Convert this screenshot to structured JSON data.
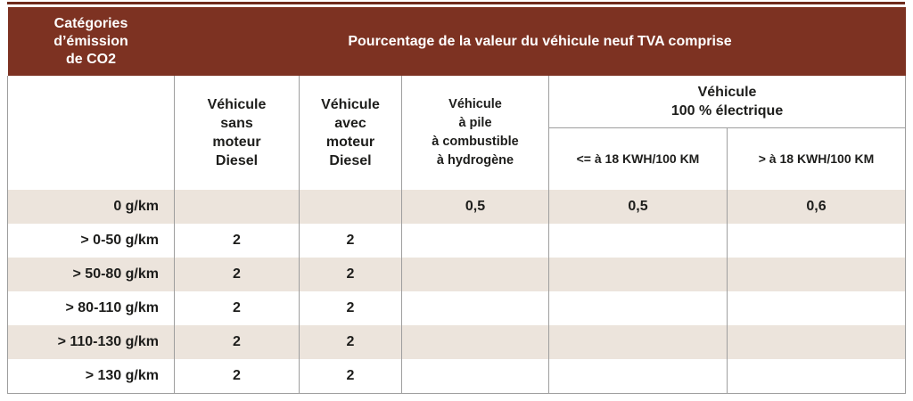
{
  "colors": {
    "header_bg": "#7d3222",
    "top_rule": "#6e2b1c",
    "row_alt_bg": "#ece4dc",
    "grid_border": "#9e9e9e",
    "body_text": "#1d1d1b",
    "header_text": "#ffffff"
  },
  "header": {
    "categories_lines": [
      "Catégories",
      "d’émission",
      "de CO2"
    ],
    "main_title": "Pourcentage de la valeur du véhicule neuf TVA comprise",
    "col_sans_diesel_lines": [
      "Véhicule",
      "sans",
      "moteur",
      "Diesel"
    ],
    "col_avec_diesel_lines": [
      "Véhicule",
      "avec",
      "moteur",
      "Diesel"
    ],
    "col_hydrogene_lines": [
      "Véhicule",
      "à pile",
      "à combustible",
      "à hydrogène"
    ],
    "col_electrique_lines": [
      "Véhicule",
      "100 % électrique"
    ],
    "electric_sub": [
      "<= à 18 KWH/100 KM",
      "> à 18 KWH/100 KM"
    ]
  },
  "rows": [
    {
      "cells": [
        "0 g/km",
        "",
        "",
        "0,5",
        "0,5",
        "0,6"
      ]
    },
    {
      "cells": [
        "> 0-50 g/km",
        "2",
        "2",
        "",
        "",
        ""
      ]
    },
    {
      "cells": [
        "> 50-80 g/km",
        "2",
        "2",
        "",
        "",
        ""
      ]
    },
    {
      "cells": [
        "> 80-110 g/km",
        "2",
        "2",
        "",
        "",
        ""
      ]
    },
    {
      "cells": [
        "> 110-130 g/km",
        "2",
        "2",
        "",
        "",
        ""
      ]
    },
    {
      "cells": [
        "> 130 g/km",
        "2",
        "2",
        "",
        "",
        ""
      ]
    }
  ]
}
